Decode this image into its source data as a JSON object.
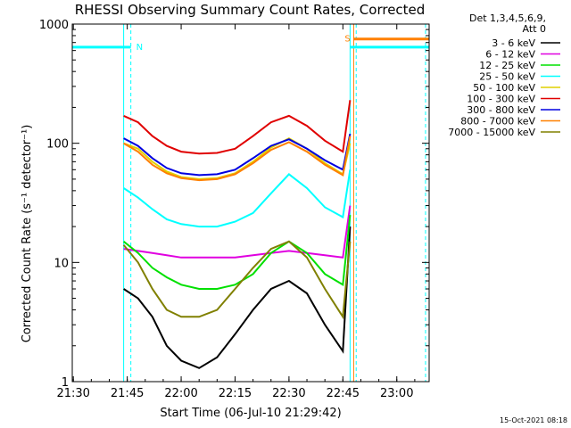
{
  "chart_data": {
    "type": "line",
    "title": "RHESSI Observing Summary Count Rates, Corrected",
    "xlabel": "Start Time (06-Jul-10 21:29:42)",
    "ylabel": "Corrected Count Rate (s⁻¹ detector⁻¹)",
    "y_scale": "log",
    "ylim": [
      1,
      1000
    ],
    "xlim": [
      "21:29:42",
      "23:09:00"
    ],
    "x_ticks": [
      "21:30",
      "21:45",
      "22:00",
      "22:15",
      "22:30",
      "22:45",
      "23:00"
    ],
    "y_ticks": [
      "1",
      "10",
      "100",
      "1000"
    ],
    "grid": false,
    "legend_title": [
      "Det 1,3,4,5,6,9,",
      "Att 0"
    ],
    "legend_placement": "right",
    "series": [
      {
        "name": "3 - 6 keV",
        "color": "#000000",
        "x": [
          "21:44",
          "21:48",
          "21:52",
          "21:56",
          "22:00",
          "22:05",
          "22:10",
          "22:15",
          "22:20",
          "22:25",
          "22:30",
          "22:35",
          "22:40",
          "22:45",
          "22:47"
        ],
        "values": [
          6,
          5,
          3.5,
          2,
          1.5,
          1.3,
          1.6,
          2.5,
          4,
          6,
          7,
          5.5,
          3,
          1.8,
          20
        ]
      },
      {
        "name": "6 - 12 keV",
        "color": "#e000e0",
        "x": [
          "21:44",
          "21:48",
          "21:52",
          "21:56",
          "22:00",
          "22:05",
          "22:10",
          "22:15",
          "22:20",
          "22:25",
          "22:30",
          "22:35",
          "22:40",
          "22:45",
          "22:47"
        ],
        "values": [
          13,
          12.5,
          12,
          11.5,
          11,
          11,
          11,
          11,
          11.5,
          12,
          12.5,
          12,
          11.5,
          11,
          30
        ]
      },
      {
        "name": "12 - 25 keV",
        "color": "#00e000",
        "x": [
          "21:44",
          "21:48",
          "21:52",
          "21:56",
          "22:00",
          "22:05",
          "22:10",
          "22:15",
          "22:20",
          "22:25",
          "22:30",
          "22:35",
          "22:40",
          "22:45",
          "22:47"
        ],
        "values": [
          15,
          12,
          9,
          7.5,
          6.5,
          6,
          6,
          6.5,
          8,
          12,
          15,
          12,
          8,
          6.5,
          25
        ]
      },
      {
        "name": "25 - 50 keV",
        "color": "#00ffff",
        "x": [
          "21:44",
          "21:48",
          "21:52",
          "21:56",
          "22:00",
          "22:05",
          "22:10",
          "22:15",
          "22:20",
          "22:25",
          "22:30",
          "22:35",
          "22:40",
          "22:45",
          "22:47"
        ],
        "values": [
          42,
          35,
          28,
          23,
          21,
          20,
          20,
          22,
          26,
          38,
          55,
          42,
          29,
          24,
          60
        ]
      },
      {
        "name": "50 - 100 keV",
        "color": "#e0d000",
        "x": [
          "21:44",
          "21:48",
          "21:52",
          "21:56",
          "22:00",
          "22:05",
          "22:10",
          "22:15",
          "22:20",
          "22:25",
          "22:30",
          "22:35",
          "22:40",
          "22:45",
          "22:47"
        ],
        "values": [
          100,
          90,
          70,
          58,
          52,
          50,
          51,
          56,
          70,
          92,
          110,
          90,
          68,
          55,
          100
        ]
      },
      {
        "name": "100 - 300 keV",
        "color": "#e00000",
        "x": [
          "21:44",
          "21:48",
          "21:52",
          "21:56",
          "22:00",
          "22:05",
          "22:10",
          "22:15",
          "22:20",
          "22:25",
          "22:30",
          "22:35",
          "22:40",
          "22:45",
          "22:47"
        ],
        "values": [
          170,
          150,
          115,
          95,
          85,
          82,
          83,
          90,
          115,
          150,
          170,
          140,
          105,
          85,
          230
        ]
      },
      {
        "name": "300 - 800 keV",
        "color": "#0000e0",
        "x": [
          "21:44",
          "21:48",
          "21:52",
          "21:56",
          "22:00",
          "22:05",
          "22:10",
          "22:15",
          "22:20",
          "22:25",
          "22:30",
          "22:35",
          "22:40",
          "22:45",
          "22:47"
        ],
        "values": [
          110,
          95,
          75,
          62,
          56,
          54,
          55,
          60,
          75,
          95,
          108,
          90,
          72,
          60,
          120
        ]
      },
      {
        "name": "800 - 7000 keV",
        "color": "#ff8000",
        "x": [
          "21:44",
          "21:48",
          "21:52",
          "21:56",
          "22:00",
          "22:05",
          "22:10",
          "22:15",
          "22:20",
          "22:25",
          "22:30",
          "22:35",
          "22:40",
          "22:45",
          "22:47"
        ],
        "values": [
          100,
          85,
          66,
          56,
          51,
          49,
          50,
          55,
          68,
          88,
          102,
          85,
          66,
          54,
          115
        ]
      },
      {
        "name": "7000 - 15000 keV",
        "color": "#808000",
        "x": [
          "21:44",
          "21:48",
          "21:52",
          "21:56",
          "22:00",
          "22:05",
          "22:10",
          "22:15",
          "22:20",
          "22:25",
          "22:30",
          "22:35",
          "22:40",
          "22:45",
          "22:47"
        ],
        "values": [
          14,
          10,
          6,
          4,
          3.5,
          3.5,
          4,
          6,
          9,
          13,
          15,
          11,
          6,
          3.5,
          15
        ]
      }
    ],
    "annotations": [
      {
        "label": "N",
        "color": "#00ffff",
        "x": [
          "21:29:42",
          "21:46"
        ],
        "y": 640
      },
      {
        "label": "S",
        "color": "#ff8000",
        "x": [
          "22:48",
          "23:09"
        ],
        "y": 750
      },
      {
        "color": "#00ffff",
        "x": [
          "22:47",
          "23:09"
        ],
        "y": 640
      }
    ],
    "vertical_markers": [
      {
        "x": "21:29:42",
        "color": "#00ffff",
        "style": "solid"
      },
      {
        "x": "21:44",
        "color": "#00ffff",
        "style": "solid"
      },
      {
        "x": "21:46",
        "color": "#00ffff",
        "style": "dashed"
      },
      {
        "x": "22:47",
        "color": "#00ffff",
        "style": "solid"
      },
      {
        "x": "22:48",
        "color": "#ff8000",
        "style": "solid"
      },
      {
        "x": "22:48.7",
        "color": "#00ffff",
        "style": "dashed"
      },
      {
        "x": "23:08",
        "color": "#00ffff",
        "style": "dashed"
      }
    ]
  },
  "footer": {
    "timestamp": "15-Oct-2021 08:18"
  }
}
